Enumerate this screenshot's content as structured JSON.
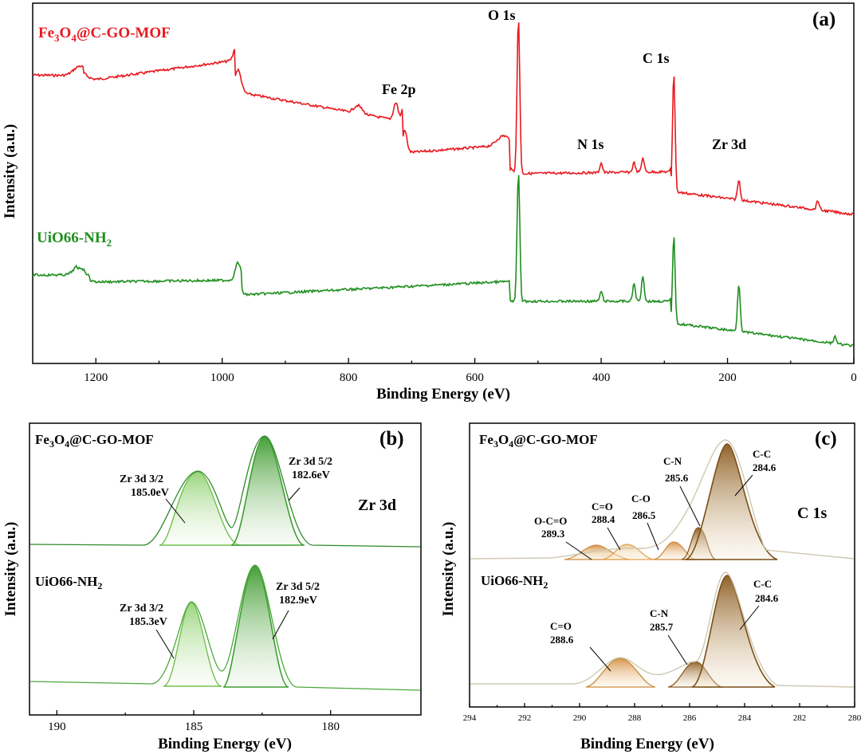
{
  "chart_data": [
    {
      "panel": "(a)",
      "type": "line",
      "title": "",
      "xlabel": "Binding Energy (eV)",
      "ylabel": "Intensity (a.u.)",
      "xlim": [
        1300,
        0
      ],
      "x_ticks": [
        "1200",
        "1000",
        "800",
        "600",
        "400",
        "200",
        "0"
      ],
      "x_tick_values": [
        1200,
        1000,
        800,
        600,
        400,
        200,
        0
      ],
      "series": [
        {
          "name": "Fe3O4@C-GO-MOF",
          "color": "#e8191f"
        },
        {
          "name": "UiO66-NH2",
          "color": "#1f8f1f"
        }
      ],
      "legend": {
        "s1": {
          "base": "Fe",
          "sub1": "3",
          "mid": "O",
          "sub2": "4",
          "rest": "@C-GO-MOF"
        },
        "s2": {
          "base": "UiO66-NH",
          "sub": "2"
        }
      },
      "annotations": [
        "O 1s",
        "Fe 2p",
        "C 1s",
        "N 1s",
        "Zr 3d"
      ]
    },
    {
      "panel": "(b)",
      "type": "line",
      "xlabel": "Binding Energy (eV)",
      "ylabel": "Intensity (a.u.)",
      "xlim": [
        191,
        176.7
      ],
      "x_ticks": [
        "190",
        "185",
        "180"
      ],
      "x_tick_values": [
        190,
        185,
        180
      ],
      "element": "Zr 3d",
      "samples": [
        {
          "name": "Fe3O4@C-GO-MOF",
          "peaks": [
            {
              "label": "Zr 3d 3/2",
              "energy": "185.0eV",
              "pos": 185.0
            },
            {
              "label": "Zr 3d 5/2",
              "energy": "182.6eV",
              "pos": 182.6
            }
          ]
        },
        {
          "name": "UiO66-NH2",
          "peaks": [
            {
              "label": "Zr 3d 3/2",
              "energy": "185.3eV",
              "pos": 185.3
            },
            {
              "label": "Zr 3d 5/2",
              "energy": "182.9eV",
              "pos": 182.9
            }
          ]
        }
      ]
    },
    {
      "panel": "(c)",
      "type": "line",
      "xlabel": "Binding Energy (eV)",
      "ylabel": "Intensity (a.u.)",
      "xlim": [
        294,
        280
      ],
      "x_ticks": [
        "294",
        "292",
        "290",
        "288",
        "286",
        "284",
        "282",
        "280"
      ],
      "x_tick_values": [
        294,
        292,
        290,
        288,
        286,
        284,
        282,
        280
      ],
      "element": "C 1s",
      "samples": [
        {
          "name": "Fe3O4@C-GO-MOF",
          "peaks": [
            {
              "label": "O-C=O",
              "energy": "289.3",
              "pos": 289.3
            },
            {
              "label": "C=O",
              "energy": "288.4",
              "pos": 288.4
            },
            {
              "label": "C-O",
              "energy": "286.5",
              "pos": 286.5
            },
            {
              "label": "C-N",
              "energy": "285.6",
              "pos": 285.6
            },
            {
              "label": "C-C",
              "energy": "284.6",
              "pos": 284.6
            }
          ]
        },
        {
          "name": "UiO66-NH2",
          "peaks": [
            {
              "label": "C=O",
              "energy": "288.6",
              "pos": 288.6
            },
            {
              "label": "C-N",
              "energy": "285.7",
              "pos": 285.7
            },
            {
              "label": "C-C",
              "energy": "284.6",
              "pos": 284.6
            }
          ]
        }
      ]
    }
  ]
}
